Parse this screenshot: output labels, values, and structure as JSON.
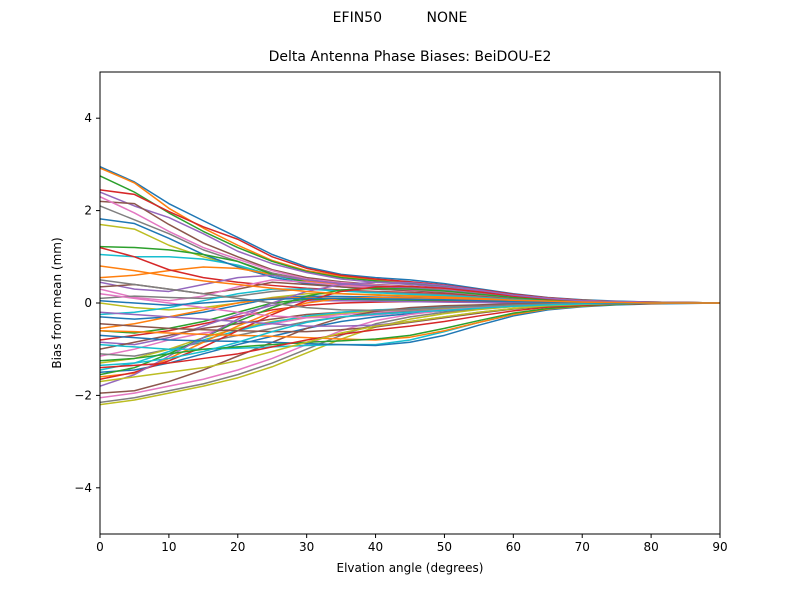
{
  "figure": {
    "suptitle_left": "EFIN50",
    "suptitle_right": "NONE"
  },
  "chart_data": {
    "type": "line",
    "title": "Delta Antenna Phase Biases: BeiDOU-E2",
    "xlabel": "Elvation angle (degrees)",
    "ylabel": "Bias from mean (mm)",
    "xlim": [
      0,
      90
    ],
    "ylim": [
      -5,
      5
    ],
    "xticks": [
      0,
      10,
      20,
      30,
      40,
      50,
      60,
      70,
      80,
      90
    ],
    "yticks": [
      -4,
      -2,
      0,
      2,
      4
    ],
    "grid": false,
    "legend": "none",
    "x": [
      0,
      5,
      10,
      15,
      20,
      25,
      30,
      35,
      40,
      45,
      50,
      55,
      60,
      65,
      70,
      75,
      80,
      85,
      90
    ],
    "colors": [
      "#1f77b4",
      "#ff7f0e",
      "#2ca02c",
      "#d62728",
      "#9467bd",
      "#8c564b",
      "#e377c2",
      "#7f7f7f",
      "#bcbd22",
      "#17becf"
    ],
    "series": [
      {
        "values": [
          2.95,
          2.62,
          2.15,
          1.78,
          1.42,
          1.05,
          0.78,
          0.62,
          0.55,
          0.5,
          0.42,
          0.31,
          0.2,
          0.12,
          0.07,
          0.04,
          0.02,
          0.01,
          0.0
        ]
      },
      {
        "values": [
          2.92,
          2.6,
          2.05,
          1.62,
          1.25,
          0.92,
          0.7,
          0.58,
          0.5,
          0.45,
          0.38,
          0.28,
          0.18,
          0.11,
          0.06,
          0.03,
          0.02,
          0.01,
          0.0
        ]
      },
      {
        "values": [
          2.75,
          2.4,
          1.95,
          1.55,
          1.2,
          0.9,
          0.68,
          0.55,
          0.48,
          0.42,
          0.36,
          0.27,
          0.17,
          0.1,
          0.06,
          0.03,
          0.02,
          0.01,
          0.0
        ]
      },
      {
        "values": [
          2.45,
          2.35,
          1.98,
          1.65,
          1.38,
          1.0,
          0.75,
          0.6,
          0.52,
          0.46,
          0.39,
          0.29,
          0.19,
          0.11,
          0.06,
          0.03,
          0.02,
          0.01,
          0.0
        ]
      },
      {
        "values": [
          2.4,
          2.1,
          1.85,
          1.5,
          1.12,
          0.85,
          0.66,
          0.52,
          0.45,
          0.4,
          0.34,
          0.26,
          0.17,
          0.1,
          0.05,
          0.03,
          0.02,
          0.01,
          0.0
        ]
      },
      {
        "values": [
          2.2,
          2.15,
          1.7,
          1.3,
          1.0,
          0.72,
          0.55,
          0.46,
          0.4,
          0.36,
          0.3,
          0.23,
          0.15,
          0.09,
          0.05,
          0.03,
          0.01,
          0.01,
          0.0
        ]
      },
      {
        "values": [
          2.3,
          1.95,
          1.55,
          1.2,
          0.95,
          0.7,
          0.52,
          0.44,
          0.39,
          0.35,
          0.3,
          0.22,
          0.14,
          0.08,
          0.05,
          0.03,
          0.01,
          0.0,
          0.0
        ]
      },
      {
        "values": [
          2.1,
          1.8,
          1.5,
          1.15,
          0.9,
          0.65,
          0.5,
          0.42,
          0.37,
          0.33,
          0.28,
          0.21,
          0.13,
          0.08,
          0.04,
          0.02,
          0.01,
          0.0,
          0.0
        ]
      },
      {
        "values": [
          1.7,
          1.6,
          1.25,
          1.0,
          0.8,
          0.6,
          0.46,
          0.38,
          0.33,
          0.3,
          0.26,
          0.2,
          0.12,
          0.07,
          0.04,
          0.02,
          0.01,
          0.0,
          0.0
        ]
      },
      {
        "values": [
          1.05,
          1.0,
          1.0,
          0.95,
          0.82,
          0.6,
          0.45,
          0.36,
          0.31,
          0.28,
          0.24,
          0.18,
          0.11,
          0.07,
          0.04,
          0.02,
          0.01,
          0.0,
          0.0
        ]
      },
      {
        "values": [
          1.82,
          1.72,
          1.4,
          1.05,
          0.78,
          0.56,
          0.42,
          0.35,
          0.3,
          0.27,
          0.23,
          0.17,
          0.11,
          0.07,
          0.04,
          0.02,
          0.01,
          0.0,
          0.0
        ]
      },
      {
        "values": [
          0.55,
          0.6,
          0.7,
          0.78,
          0.75,
          0.62,
          0.48,
          0.4,
          0.34,
          0.3,
          0.26,
          0.19,
          0.12,
          0.07,
          0.04,
          0.02,
          0.01,
          0.0,
          0.0
        ]
      },
      {
        "values": [
          1.22,
          1.2,
          1.15,
          1.05,
          0.9,
          0.62,
          0.45,
          0.37,
          0.32,
          0.28,
          0.24,
          0.18,
          0.11,
          0.07,
          0.04,
          0.02,
          0.01,
          0.0,
          0.0
        ]
      },
      {
        "values": [
          1.2,
          1.0,
          0.72,
          0.55,
          0.45,
          0.38,
          0.32,
          0.28,
          0.25,
          0.23,
          0.2,
          0.15,
          0.1,
          0.06,
          0.03,
          0.02,
          0.01,
          0.0,
          0.0
        ]
      },
      {
        "values": [
          0.45,
          0.3,
          0.25,
          0.4,
          0.55,
          0.6,
          0.5,
          0.42,
          0.36,
          0.31,
          0.27,
          0.2,
          0.13,
          0.08,
          0.04,
          0.02,
          0.01,
          0.0,
          0.0
        ]
      },
      {
        "values": [
          0.35,
          0.4,
          0.3,
          0.2,
          0.3,
          0.45,
          0.4,
          0.35,
          0.3,
          0.27,
          0.23,
          0.17,
          0.11,
          0.06,
          0.03,
          0.02,
          0.01,
          0.0,
          0.0
        ]
      },
      {
        "values": [
          0.3,
          0.12,
          0.05,
          0.15,
          0.35,
          0.5,
          0.45,
          0.38,
          0.33,
          0.29,
          0.25,
          0.18,
          0.12,
          0.07,
          0.04,
          0.02,
          0.01,
          0.0,
          0.0
        ]
      },
      {
        "values": [
          0.1,
          0.15,
          0.12,
          0.1,
          0.15,
          0.25,
          0.3,
          0.27,
          0.24,
          0.21,
          0.18,
          0.13,
          0.08,
          0.05,
          0.03,
          0.01,
          0.0,
          0.0,
          0.0
        ]
      },
      {
        "values": [
          0.0,
          -0.1,
          -0.15,
          -0.1,
          0.0,
          0.12,
          0.2,
          0.2,
          0.18,
          0.16,
          0.14,
          0.1,
          0.06,
          0.04,
          0.02,
          0.01,
          0.0,
          0.0,
          0.0
        ]
      },
      {
        "values": [
          -0.25,
          -0.2,
          -0.1,
          0.05,
          0.2,
          0.3,
          0.3,
          0.26,
          0.22,
          0.19,
          0.16,
          0.12,
          0.07,
          0.04,
          0.02,
          0.01,
          0.0,
          0.0,
          0.0
        ]
      },
      {
        "values": [
          -0.3,
          -0.35,
          -0.3,
          -0.2,
          -0.05,
          0.1,
          0.15,
          0.14,
          0.13,
          0.12,
          0.1,
          0.07,
          0.04,
          0.02,
          0.01,
          0.0,
          0.0,
          0.0,
          0.0
        ]
      },
      {
        "values": [
          -0.55,
          -0.45,
          -0.3,
          -0.15,
          0.0,
          0.1,
          0.12,
          0.1,
          0.08,
          0.07,
          0.06,
          0.04,
          0.02,
          0.01,
          0.0,
          0.0,
          0.0,
          0.0,
          0.0
        ]
      },
      {
        "values": [
          -0.6,
          -0.65,
          -0.55,
          -0.4,
          -0.2,
          0.0,
          0.08,
          0.08,
          0.07,
          0.06,
          0.05,
          0.03,
          0.02,
          0.01,
          0.0,
          0.0,
          0.0,
          0.0,
          0.0
        ]
      },
      {
        "values": [
          -0.8,
          -0.7,
          -0.6,
          -0.45,
          -0.3,
          -0.15,
          -0.05,
          0.0,
          0.02,
          0.03,
          0.03,
          0.02,
          0.01,
          0.0,
          0.0,
          0.0,
          0.0,
          0.0,
          0.0
        ]
      },
      {
        "values": [
          -0.85,
          -0.9,
          -0.75,
          -0.5,
          -0.25,
          -0.05,
          0.05,
          0.05,
          0.04,
          0.03,
          0.02,
          0.01,
          0.0,
          0.0,
          0.0,
          0.0,
          0.0,
          0.0,
          0.0
        ]
      },
      {
        "values": [
          -1.0,
          -0.85,
          -0.7,
          -0.55,
          -0.45,
          -0.35,
          -0.25,
          -0.2,
          -0.16,
          -0.13,
          -0.1,
          -0.07,
          -0.05,
          -0.03,
          -0.02,
          -0.01,
          0.0,
          0.0,
          0.0
        ]
      },
      {
        "values": [
          -1.15,
          -1.0,
          -0.8,
          -0.65,
          -0.55,
          -0.45,
          -0.32,
          -0.25,
          -0.2,
          -0.16,
          -0.12,
          -0.08,
          -0.05,
          -0.03,
          -0.02,
          -0.01,
          0.0,
          0.0,
          0.0
        ]
      },
      {
        "values": [
          -1.1,
          -1.15,
          -1.0,
          -0.85,
          -0.7,
          -0.55,
          -0.4,
          -0.3,
          -0.23,
          -0.18,
          -0.14,
          -0.1,
          -0.06,
          -0.04,
          -0.02,
          -0.01,
          0.0,
          0.0,
          0.0
        ]
      },
      {
        "values": [
          -1.3,
          -1.2,
          -1.0,
          -0.75,
          -0.55,
          -0.4,
          -0.3,
          -0.22,
          -0.17,
          -0.14,
          -0.11,
          -0.08,
          -0.05,
          -0.03,
          -0.02,
          -0.01,
          0.0,
          0.0,
          0.0
        ]
      },
      {
        "values": [
          -1.45,
          -1.3,
          -1.05,
          -0.8,
          -0.6,
          -0.42,
          -0.28,
          -0.2,
          -0.15,
          -0.12,
          -0.09,
          -0.06,
          -0.04,
          -0.02,
          -0.01,
          0.0,
          0.0,
          0.0,
          0.0
        ]
      },
      {
        "values": [
          -1.5,
          -1.45,
          -1.3,
          -1.1,
          -0.9,
          -0.72,
          -0.55,
          -0.4,
          -0.3,
          -0.23,
          -0.17,
          -0.12,
          -0.07,
          -0.04,
          -0.02,
          -0.01,
          0.0,
          0.0,
          0.0
        ]
      },
      {
        "values": [
          -1.6,
          -1.52,
          -1.2,
          -0.85,
          -0.5,
          -0.2,
          0.0,
          0.1,
          0.12,
          0.11,
          0.1,
          0.07,
          0.04,
          0.02,
          0.01,
          0.0,
          0.0,
          0.0,
          0.0
        ]
      },
      {
        "values": [
          -1.55,
          -1.4,
          -1.1,
          -0.75,
          -0.4,
          -0.1,
          0.15,
          0.28,
          0.32,
          0.3,
          0.26,
          0.19,
          0.12,
          0.07,
          0.04,
          0.02,
          0.01,
          0.0,
          0.0
        ]
      },
      {
        "values": [
          -1.65,
          -1.5,
          -1.25,
          -0.95,
          -0.6,
          -0.25,
          0.05,
          0.25,
          0.35,
          0.36,
          0.32,
          0.24,
          0.15,
          0.09,
          0.05,
          0.02,
          0.01,
          0.0,
          0.0
        ]
      },
      {
        "values": [
          -1.8,
          -1.55,
          -1.15,
          -0.75,
          -0.35,
          0.0,
          0.25,
          0.4,
          0.45,
          0.44,
          0.38,
          0.28,
          0.17,
          0.1,
          0.05,
          0.03,
          0.01,
          0.0,
          0.0
        ]
      },
      {
        "values": [
          -1.95,
          -1.9,
          -1.7,
          -1.45,
          -1.15,
          -0.85,
          -0.55,
          -0.32,
          -0.18,
          -0.1,
          -0.06,
          -0.04,
          -0.02,
          -0.01,
          0.0,
          0.0,
          0.0,
          0.0,
          0.0
        ]
      },
      {
        "values": [
          -2.05,
          -1.95,
          -1.8,
          -1.65,
          -1.45,
          -1.2,
          -0.9,
          -0.6,
          -0.38,
          -0.25,
          -0.16,
          -0.1,
          -0.06,
          -0.03,
          -0.02,
          -0.01,
          0.0,
          0.0,
          0.0
        ]
      },
      {
        "values": [
          -2.15,
          -2.05,
          -1.9,
          -1.75,
          -1.55,
          -1.3,
          -1.0,
          -0.7,
          -0.45,
          -0.3,
          -0.2,
          -0.13,
          -0.07,
          -0.04,
          -0.02,
          -0.01,
          0.0,
          0.0,
          0.0
        ]
      },
      {
        "values": [
          -2.2,
          -2.1,
          -1.95,
          -1.8,
          -1.62,
          -1.38,
          -1.08,
          -0.78,
          -0.52,
          -0.35,
          -0.23,
          -0.14,
          -0.08,
          -0.04,
          -0.02,
          -0.01,
          0.0,
          0.0,
          0.0
        ]
      },
      {
        "values": [
          -0.9,
          -0.95,
          -1.0,
          -1.0,
          -0.98,
          -0.95,
          -0.92,
          -0.9,
          -0.9,
          -0.8,
          -0.62,
          -0.42,
          -0.25,
          -0.14,
          -0.07,
          -0.03,
          -0.01,
          0.0,
          0.0
        ]
      },
      {
        "values": [
          -0.7,
          -0.75,
          -0.8,
          -0.82,
          -0.83,
          -0.85,
          -0.88,
          -0.9,
          -0.92,
          -0.85,
          -0.7,
          -0.48,
          -0.28,
          -0.15,
          -0.08,
          -0.04,
          -0.02,
          -0.01,
          0.0
        ]
      },
      {
        "values": [
          -0.6,
          -0.62,
          -0.65,
          -0.68,
          -0.7,
          -0.72,
          -0.75,
          -0.78,
          -0.8,
          -0.74,
          -0.6,
          -0.42,
          -0.25,
          -0.13,
          -0.07,
          -0.03,
          -0.01,
          0.0,
          0.0
        ]
      },
      {
        "values": [
          -1.25,
          -1.2,
          -1.1,
          -1.0,
          -0.95,
          -0.9,
          -0.85,
          -0.82,
          -0.78,
          -0.7,
          -0.55,
          -0.38,
          -0.22,
          -0.12,
          -0.06,
          -0.03,
          -0.01,
          0.0,
          0.0
        ]
      },
      {
        "values": [
          -1.4,
          -1.35,
          -1.3,
          -1.2,
          -1.1,
          -0.95,
          -0.8,
          -0.68,
          -0.58,
          -0.5,
          -0.4,
          -0.28,
          -0.17,
          -0.09,
          -0.05,
          -0.02,
          -0.01,
          0.0,
          0.0
        ]
      },
      {
        "values": [
          -0.2,
          -0.25,
          -0.3,
          -0.35,
          -0.4,
          -0.45,
          -0.5,
          -0.5,
          -0.48,
          -0.4,
          -0.3,
          -0.2,
          -0.12,
          -0.06,
          -0.03,
          -0.01,
          0.0,
          0.0,
          0.0
        ]
      },
      {
        "values": [
          -0.45,
          -0.5,
          -0.55,
          -0.58,
          -0.6,
          -0.62,
          -0.62,
          -0.58,
          -0.52,
          -0.42,
          -0.32,
          -0.22,
          -0.13,
          -0.07,
          -0.03,
          -0.01,
          0.0,
          0.0,
          0.0
        ]
      },
      {
        "values": [
          0.2,
          0.1,
          0.0,
          -0.1,
          -0.2,
          -0.28,
          -0.32,
          -0.3,
          -0.26,
          -0.2,
          -0.15,
          -0.1,
          -0.06,
          -0.03,
          -0.01,
          0.0,
          0.0,
          0.0,
          0.0
        ]
      },
      {
        "values": [
          0.5,
          0.4,
          0.3,
          0.2,
          0.1,
          0.0,
          -0.1,
          -0.15,
          -0.16,
          -0.14,
          -0.1,
          -0.07,
          -0.04,
          -0.02,
          -0.01,
          0.0,
          0.0,
          0.0,
          0.0
        ]
      },
      {
        "values": [
          -1.7,
          -1.6,
          -1.5,
          -1.4,
          -1.25,
          -1.05,
          -0.85,
          -0.65,
          -0.5,
          -0.4,
          -0.3,
          -0.2,
          -0.12,
          -0.06,
          -0.03,
          -0.01,
          0.0,
          0.0,
          0.0
        ]
      },
      {
        "values": [
          -1.35,
          -1.3,
          -1.2,
          -1.05,
          -0.85,
          -0.62,
          -0.42,
          -0.3,
          -0.24,
          -0.2,
          -0.16,
          -0.11,
          -0.07,
          -0.04,
          -0.02,
          -0.01,
          0.0,
          0.0,
          0.0
        ]
      },
      {
        "values": [
          0.05,
          0.0,
          -0.05,
          0.0,
          0.05,
          0.08,
          0.1,
          0.1,
          0.09,
          0.08,
          0.07,
          0.05,
          0.03,
          0.02,
          0.01,
          0.0,
          0.0,
          0.0,
          0.0
        ]
      },
      {
        "values": [
          0.8,
          0.7,
          0.58,
          0.48,
          0.4,
          0.32,
          0.25,
          0.2,
          0.17,
          0.15,
          0.13,
          0.1,
          0.06,
          0.04,
          0.02,
          0.01,
          0.0,
          0.0,
          0.0
        ]
      }
    ]
  }
}
